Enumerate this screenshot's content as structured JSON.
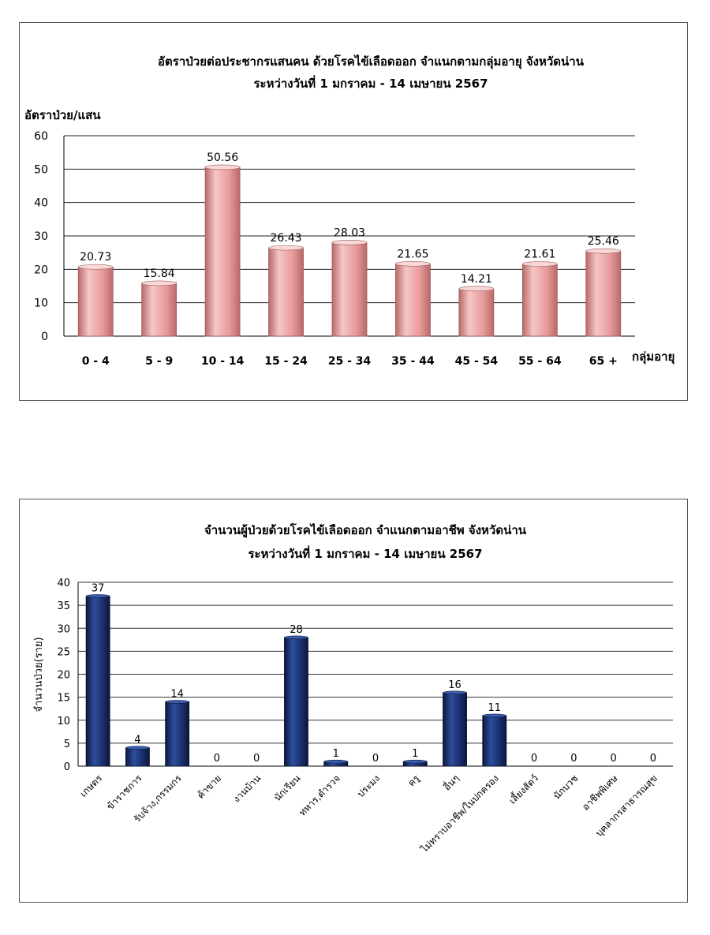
{
  "colors": {
    "bar1_light": "#f6c6c6",
    "bar1_mid": "#e79a9a",
    "bar1_dark": "#b86a6a",
    "bar2_light": "#2e4f9a",
    "bar2_mid": "#1b2f6e",
    "bar2_dark": "#0b1640"
  },
  "chart_data": [
    {
      "type": "bar",
      "title": "อัตราป่วยต่อประชากรแสนคน ด้วยโรคไข้เลือดออก จำแนกตามกลุ่มอายุ จังหวัดน่าน",
      "subtitle": "ระหว่างวันที่  1 มกราคม - 14 เมษายน 2567",
      "ylabel": "อัตราป่วย/แสน",
      "xlabel": "กลุ่มอายุ",
      "ylim": [
        0,
        60
      ],
      "yticks": [
        0,
        10,
        20,
        30,
        40,
        50,
        60
      ],
      "grid": true,
      "categories": [
        "0 - 4",
        "5 - 9",
        "10 - 14",
        "15 - 24",
        "25 - 34",
        "35 - 44",
        "45 - 54",
        "55 - 64",
        "65 +"
      ],
      "values": [
        20.73,
        15.84,
        50.56,
        26.43,
        28.03,
        21.65,
        14.21,
        21.61,
        25.46
      ],
      "data_labels": [
        "20.73",
        "15.84",
        "50.56",
        "26.43",
        "28.03",
        "21.65",
        "14.21",
        "21.61",
        "25.46"
      ]
    },
    {
      "type": "bar",
      "title": "จำนวนผู้ป่วยด้วยโรคไข้เลือดออก จำแนกตามอาชีพ  จังหวัดน่าน",
      "subtitle": "ระหว่างวันที่  1 มกราคม - 14 เมษายน 2567",
      "ylabel": "จำนวนป่วย(ราย)",
      "ylim": [
        0,
        40
      ],
      "yticks": [
        0,
        5,
        10,
        15,
        20,
        25,
        30,
        35,
        40
      ],
      "grid": true,
      "categories": [
        "เกษตร",
        "ข้าราชการ",
        "รับจ้าง,กรรมกร",
        "ค้าขาย",
        "งานบ้าน",
        "นักเรียน",
        "ทหาร,ตำรวจ",
        "ประมง",
        "ครู",
        "อื่นๆ",
        "ไม่ทราบอาชีพ/ในปกครอง",
        "เลี้ยงสัตว์",
        "นักบวช",
        "อาชีพพิเศษ",
        "บุคลากรสาธารณสุข"
      ],
      "values": [
        37,
        4,
        14,
        0,
        0,
        28,
        1,
        0,
        1,
        16,
        11,
        0,
        0,
        0,
        0
      ],
      "data_labels": [
        "37",
        "4",
        "14",
        "0",
        "0",
        "28",
        "1",
        "0",
        "1",
        "16",
        "11",
        "0",
        "0",
        "0",
        "0"
      ]
    }
  ]
}
